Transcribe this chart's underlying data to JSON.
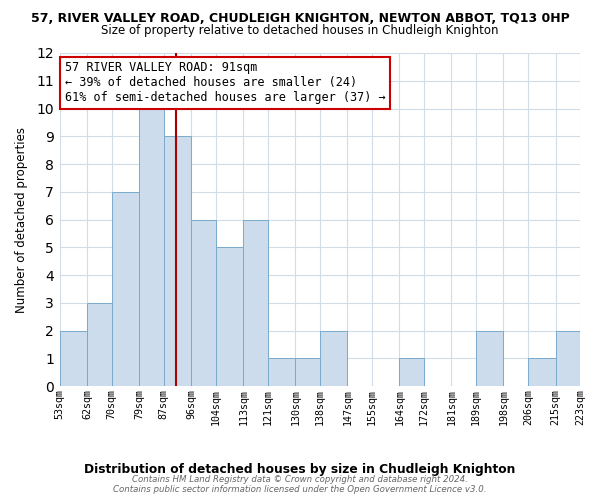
{
  "title": "57, RIVER VALLEY ROAD, CHUDLEIGH KNIGHTON, NEWTON ABBOT, TQ13 0HP",
  "subtitle": "Size of property relative to detached houses in Chudleigh Knighton",
  "xlabel": "Distribution of detached houses by size in Chudleigh Knighton",
  "ylabel": "Number of detached properties",
  "bin_edges": [
    53,
    62,
    70,
    79,
    87,
    96,
    104,
    113,
    121,
    130,
    138,
    147,
    155,
    164,
    172,
    181,
    189,
    198,
    206,
    215,
    223
  ],
  "bin_labels": [
    "53sqm",
    "62sqm",
    "70sqm",
    "79sqm",
    "87sqm",
    "96sqm",
    "104sqm",
    "113sqm",
    "121sqm",
    "130sqm",
    "138sqm",
    "147sqm",
    "155sqm",
    "164sqm",
    "172sqm",
    "181sqm",
    "189sqm",
    "198sqm",
    "206sqm",
    "215sqm",
    "223sqm"
  ],
  "counts": [
    2,
    3,
    7,
    10,
    9,
    6,
    5,
    6,
    1,
    1,
    2,
    0,
    0,
    1,
    0,
    0,
    2,
    0,
    1,
    2
  ],
  "bar_color": "#ccdcec",
  "bar_edge_color": "#7aaacb",
  "property_value": 91,
  "vline_color": "#aa0000",
  "ylim": [
    0,
    12
  ],
  "yticks": [
    0,
    1,
    2,
    3,
    4,
    5,
    6,
    7,
    8,
    9,
    10,
    11,
    12
  ],
  "annotation_text": "57 RIVER VALLEY ROAD: 91sqm\n← 39% of detached houses are smaller (24)\n61% of semi-detached houses are larger (37) →",
  "annotation_box_color": "#ffffff",
  "annotation_box_edge": "#cc0000",
  "footer_line1": "Contains HM Land Registry data © Crown copyright and database right 2024.",
  "footer_line2": "Contains public sector information licensed under the Open Government Licence v3.0.",
  "background_color": "#ffffff",
  "grid_color": "#d0dce8"
}
